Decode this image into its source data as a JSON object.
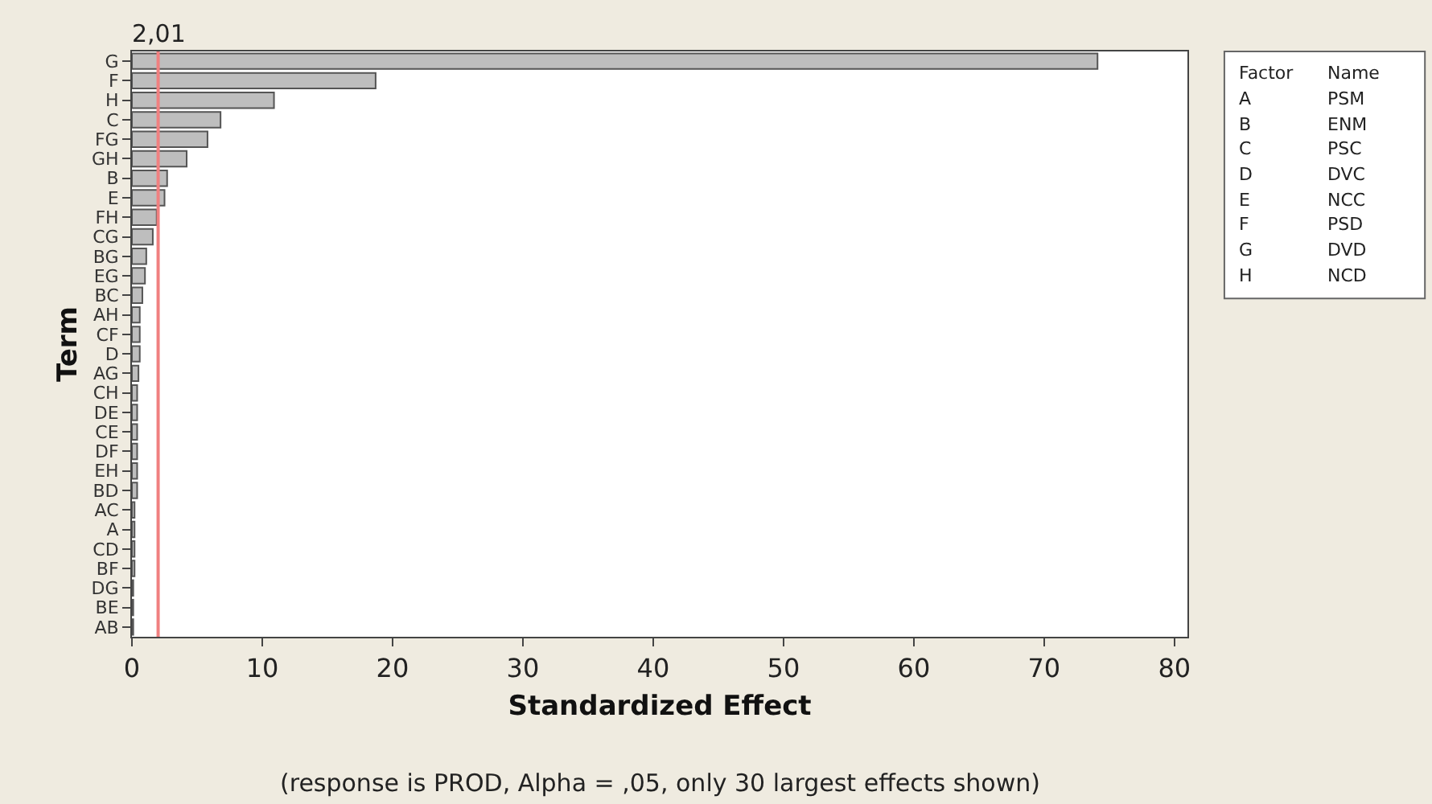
{
  "chart_data": {
    "type": "bar",
    "orientation": "horizontal",
    "xlabel": "Standardized Effect",
    "ylabel": "Term",
    "categories": [
      "G",
      "F",
      "H",
      "C",
      "FG",
      "GH",
      "B",
      "E",
      "FH",
      "CG",
      "BG",
      "EG",
      "BC",
      "AH",
      "CF",
      "D",
      "AG",
      "CH",
      "DE",
      "CE",
      "DF",
      "EH",
      "BD",
      "AC",
      "A",
      "CD",
      "BF",
      "DG",
      "BE",
      "AB"
    ],
    "values": [
      74.1,
      18.7,
      10.9,
      6.8,
      5.8,
      4.2,
      2.7,
      2.5,
      1.9,
      1.6,
      1.1,
      1.0,
      0.8,
      0.6,
      0.6,
      0.6,
      0.5,
      0.4,
      0.4,
      0.4,
      0.4,
      0.4,
      0.4,
      0.2,
      0.2,
      0.2,
      0.2,
      0.1,
      0.1,
      0.1
    ],
    "color": "#bebebe",
    "xlim": [
      0,
      81
    ],
    "xticks": [
      0,
      10,
      20,
      30,
      40,
      50,
      60,
      70,
      80
    ],
    "grid": false,
    "ref_lines": [
      {
        "axis": "x",
        "value": 2.01,
        "label": "2,01",
        "color": "#f08080"
      }
    ],
    "annotations": [
      "Factor",
      "Name",
      "A",
      "PSM",
      "B",
      "ENM",
      "C",
      "PSC",
      "D",
      "DVC",
      "E",
      "NCC",
      "F",
      "PSD",
      "G",
      "DVD",
      "H",
      "NCD",
      "(response is PROD, Alpha = ,05, only 30 largest effects shown)"
    ]
  }
}
